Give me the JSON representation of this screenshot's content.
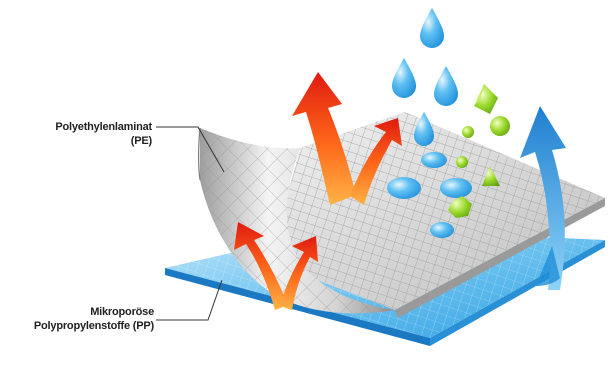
{
  "labels": {
    "pe": {
      "line1": "Polyethylenlaminat",
      "line2": "(PE)"
    },
    "pp": {
      "line1": "Mikroporöse",
      "line2": "Polypropylenstoffe (PP)"
    }
  },
  "colors": {
    "pe_layer": "#c9c9c9",
    "pp_layer": "#5cb8ea",
    "water": "#2f9fe3",
    "vapor_arrow_warm": "#ff7a1a",
    "vapor_arrow_hot": "#e02010",
    "cool_arrow": "#1f8fd8",
    "particles": "#8ccf1e"
  },
  "icons": {
    "water_drops": "water-drop-icon",
    "blocked_particles": "particle-icon",
    "heat_arrows": "heat-vapor-arrow-icon",
    "air_arrow": "air-flow-arrow-icon"
  }
}
